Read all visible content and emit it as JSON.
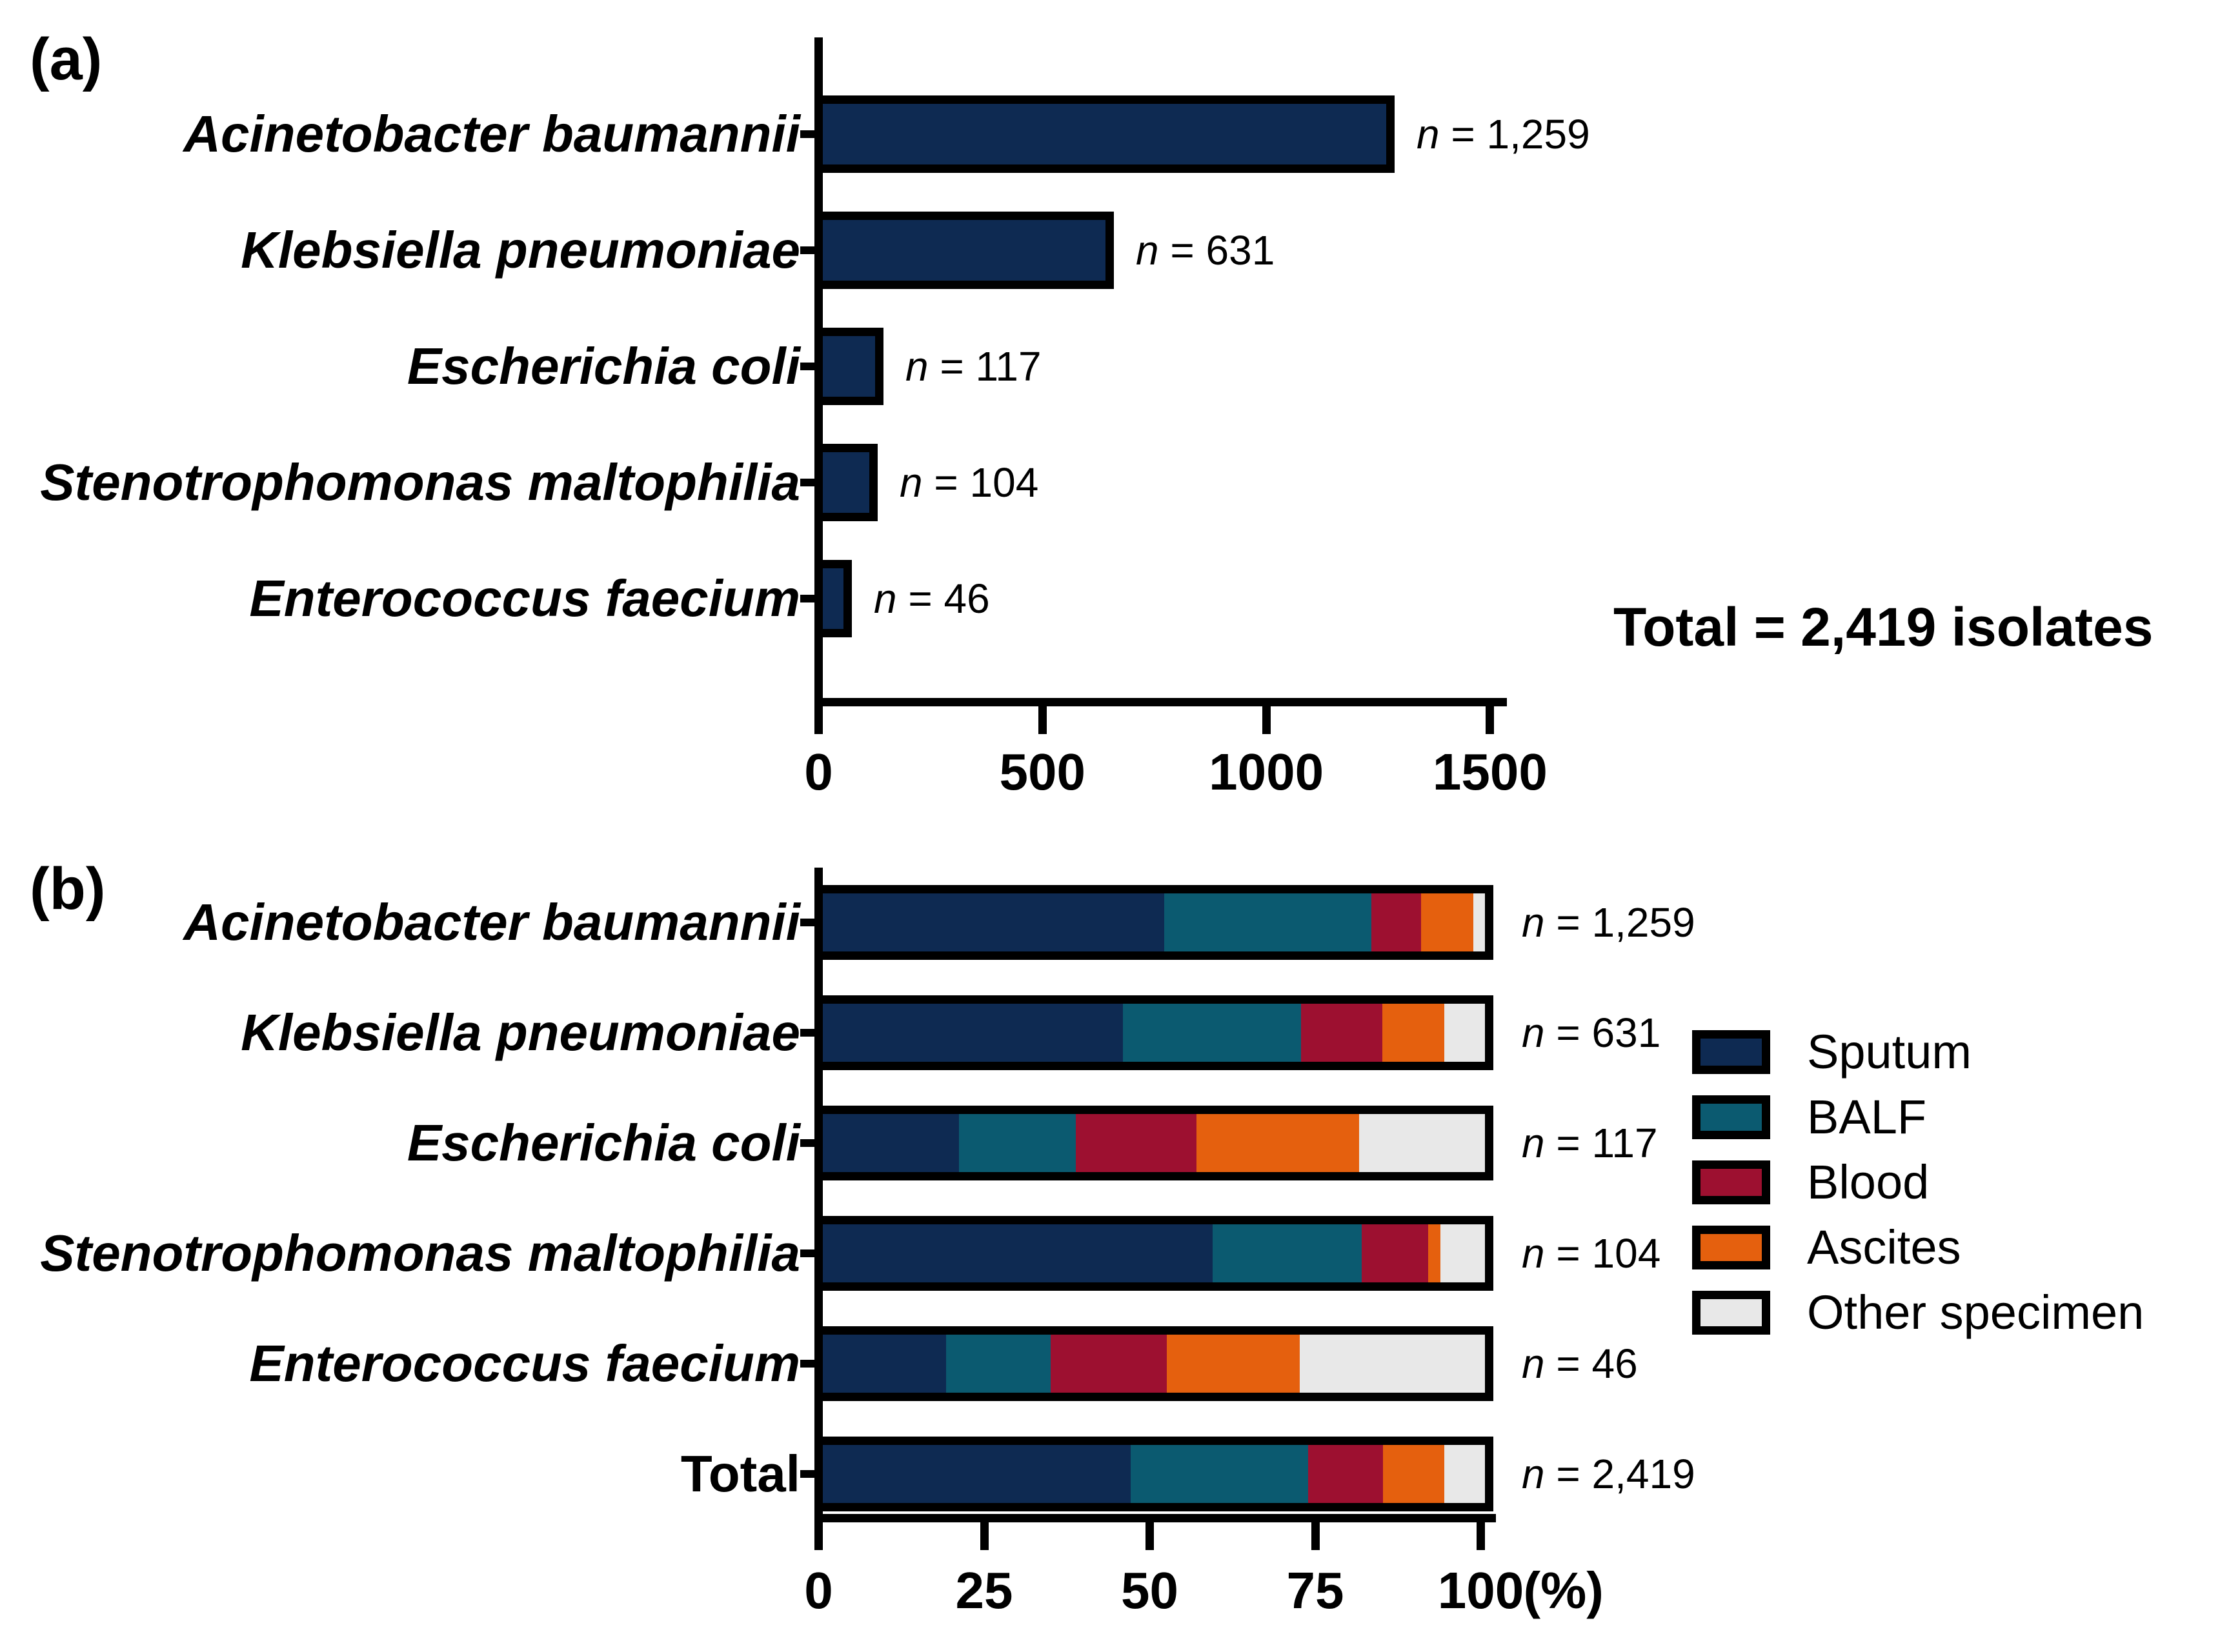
{
  "figure": {
    "panel_a_label": "(a)",
    "panel_b_label": "(b)",
    "total_annotation": "Total = 2,419 isolates",
    "percent_unit_label": "(%)"
  },
  "colors": {
    "bar_fill": "#0e2a52",
    "sputum": "#0e2a52",
    "balf": "#0b5a70",
    "blood": "#9d1030",
    "ascites": "#e5600e",
    "other_specimen": "#e8e8e8",
    "outline": "#000000",
    "background": "#ffffff"
  },
  "chart_data": [
    {
      "type": "bar",
      "orientation": "horizontal",
      "title": "",
      "xlabel": "",
      "ylabel": "",
      "categories": [
        "Acinetobacter baumannii",
        "Klebsiella pneumoniae",
        "Escherichia coli",
        "Stenotrophomonas maltophilia",
        "Enterococcus faecium"
      ],
      "categories_italic": [
        true,
        true,
        true,
        true,
        true
      ],
      "values": [
        1259,
        631,
        117,
        104,
        46
      ],
      "n_labels": [
        {
          "prefix": "n",
          "rest": " = 1,259"
        },
        {
          "prefix": "n",
          "rest": " = 631"
        },
        {
          "prefix": "n",
          "rest": " = 117"
        },
        {
          "prefix": "n",
          "rest": " = 104"
        },
        {
          "prefix": "n",
          "rest": " = 46"
        }
      ],
      "bar_color": "#0e2a52",
      "xlim": [
        0,
        1500
      ],
      "xticks": [
        0,
        500,
        1000,
        1500
      ],
      "xtick_labels": [
        "0",
        "500",
        "1000",
        "1500"
      ],
      "grid": false,
      "annotation": "Total = 2,419 isolates"
    },
    {
      "type": "bar",
      "subtype": "stacked-percent",
      "orientation": "horizontal",
      "title": "",
      "xlabel": "(%)",
      "categories": [
        "Acinetobacter baumannii",
        "Klebsiella pneumoniae",
        "Escherichia coli",
        "Stenotrophomonas maltophilia",
        "Enterococcus faecium",
        "Total"
      ],
      "categories_italic": [
        true,
        true,
        true,
        true,
        true,
        false
      ],
      "n_labels": [
        {
          "prefix": "n",
          "rest": " = 1,259"
        },
        {
          "prefix": "n",
          "rest": " = 631"
        },
        {
          "prefix": "n",
          "rest": " = 117"
        },
        {
          "prefix": "n",
          "rest": " = 104"
        },
        {
          "prefix": "n",
          "rest": " = 46"
        },
        {
          "prefix": "n",
          "rest": " = 2,419"
        }
      ],
      "series": [
        {
          "name": "Sputum",
          "color": "#0e2a52",
          "values": [
            51.6,
            45.3,
            20.6,
            58.9,
            18.6,
            46.5
          ]
        },
        {
          "name": "BALF",
          "color": "#0b5a70",
          "values": [
            31.2,
            26.9,
            17.6,
            22.5,
            15.8,
            26.8
          ]
        },
        {
          "name": "Blood",
          "color": "#9d1030",
          "values": [
            7.6,
            12.3,
            18.2,
            10.0,
            17.6,
            11.3
          ]
        },
        {
          "name": "Ascites",
          "color": "#e5600e",
          "values": [
            7.8,
            9.4,
            24.6,
            1.9,
            20.0,
            9.3
          ]
        },
        {
          "name": "Other specimen",
          "color": "#e8e8e8",
          "values": [
            1.8,
            6.1,
            19.0,
            6.7,
            28.0,
            6.1
          ]
        }
      ],
      "xlim": [
        0,
        100
      ],
      "xticks": [
        0,
        25,
        50,
        75,
        100
      ],
      "xtick_labels": [
        "0",
        "25",
        "50",
        "75",
        "100"
      ],
      "unit_label": "(%)",
      "grid": false,
      "legend_position": "right"
    }
  ]
}
